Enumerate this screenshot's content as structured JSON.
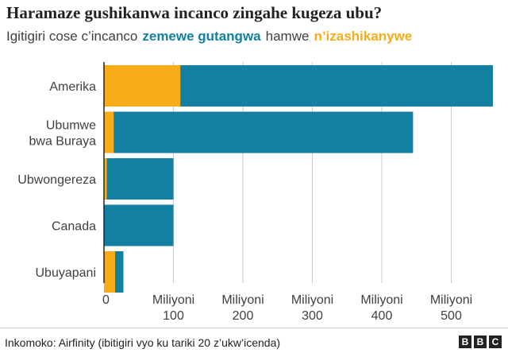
{
  "header": {
    "title": "Haramaze gushikanwa incanco zingahe kugeza ubu?",
    "subtitle_prefix": "Igitigiri cose c’incanco",
    "legend_series_a": "zemewe gutangwa",
    "subtitle_join": "hamwe",
    "legend_series_b": "n’izashikanywe"
  },
  "colors": {
    "series_a": "#1380A1",
    "series_b": "#FAAB18",
    "grid": "#cccccc",
    "axis": "#222222",
    "text": "#404040"
  },
  "chart_data": {
    "type": "bar",
    "orientation": "horizontal",
    "stacked": false,
    "categories": [
      [
        "Amerika"
      ],
      [
        "Ubumwe",
        "bwa Buraya"
      ],
      [
        "Ubwongereza"
      ],
      [
        "Canada"
      ],
      [
        "Ubuyapani"
      ]
    ],
    "series": [
      {
        "name": "zemewe gutangwa",
        "color": "#1380A1",
        "values": [
          560,
          445,
          100,
          100,
          28
        ]
      },
      {
        "name": "n’izashikanywe",
        "color": "#FAAB18",
        "values": [
          110,
          14,
          4,
          0,
          16
        ]
      }
    ],
    "xlim": [
      0,
      560
    ],
    "xticks": [
      {
        "value": 0,
        "lines": [
          "0"
        ]
      },
      {
        "value": 100,
        "lines": [
          "Miliyoni",
          "100"
        ]
      },
      {
        "value": 200,
        "lines": [
          "Miliyoni",
          "200"
        ]
      },
      {
        "value": 300,
        "lines": [
          "Miliyoni",
          "300"
        ]
      },
      {
        "value": 400,
        "lines": [
          "Miliyoni",
          "400"
        ]
      },
      {
        "value": 500,
        "lines": [
          "Miliyoni",
          "500"
        ]
      }
    ],
    "grid": true,
    "legend": "inline-subtitle"
  },
  "footer": {
    "source": "Inkomoko: Airfinity (ibitigiri vyo ku tariki 20 z’ukw’icenda)",
    "logo_letters": [
      "B",
      "B",
      "C"
    ]
  }
}
